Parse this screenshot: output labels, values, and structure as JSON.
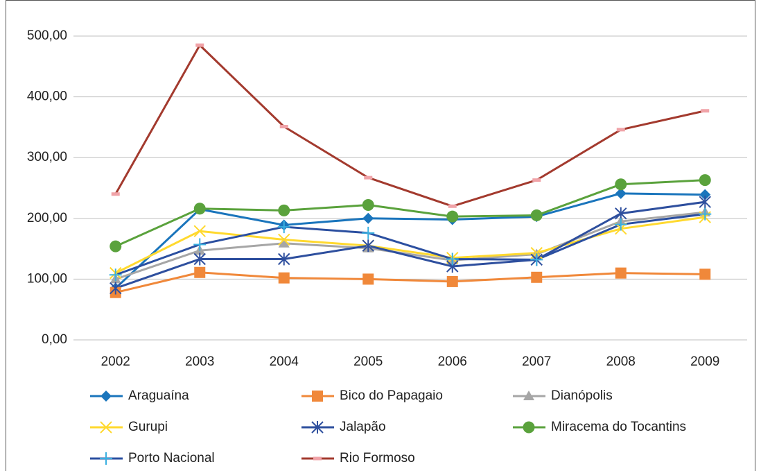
{
  "chart_data": {
    "type": "line",
    "categories": [
      "2002",
      "2003",
      "2004",
      "2005",
      "2006",
      "2007",
      "2008",
      "2009"
    ],
    "ylim": [
      0,
      500
    ],
    "yticks": [
      {
        "value": 0,
        "label": "0,00"
      },
      {
        "value": 100,
        "label": "100,00"
      },
      {
        "value": 200,
        "label": "200,00"
      },
      {
        "value": 300,
        "label": "300,00"
      },
      {
        "value": 400,
        "label": "400,00"
      },
      {
        "value": 500,
        "label": "500,00"
      }
    ],
    "grid": true,
    "legend": "bottom",
    "series": [
      {
        "name": "Araguaína",
        "color": "#1a75bc",
        "marker": "diamond",
        "values": [
          85,
          215,
          189,
          200,
          198,
          203,
          241,
          239
        ]
      },
      {
        "name": "Bico do Papagaio",
        "color": "#f0883a",
        "marker": "square",
        "values": [
          78,
          111,
          102,
          100,
          96,
          103,
          110,
          108
        ]
      },
      {
        "name": "Dianópolis",
        "color": "#a6a6a6",
        "marker": "triangle",
        "values": [
          100,
          147,
          159,
          151,
          131,
          141,
          195,
          210
        ]
      },
      {
        "name": "Gurupi",
        "color": "#ffd92f",
        "marker": "x",
        "values": [
          110,
          179,
          165,
          155,
          135,
          143,
          183,
          202
        ]
      },
      {
        "name": "Jalapão",
        "color": "#2e4f9e",
        "marker": "star",
        "values": [
          85,
          133,
          133,
          155,
          121,
          132,
          208,
          227
        ]
      },
      {
        "name": "Miracema do Tocantins",
        "color": "#5aa23c",
        "marker": "circle",
        "values": [
          154,
          216,
          213,
          222,
          203,
          205,
          256,
          263
        ]
      },
      {
        "name": "Porto Nacional",
        "color": "#2b4fa0",
        "marker_color": "#3ab0e0",
        "marker": "plus",
        "values": [
          107,
          157,
          186,
          176,
          133,
          132,
          190,
          207
        ]
      },
      {
        "name": "Rio Formoso",
        "color": "#a33a2e",
        "marker_color": "#f0a3a8",
        "marker": "dash",
        "values": [
          240,
          485,
          351,
          267,
          220,
          263,
          346,
          377
        ]
      }
    ]
  }
}
